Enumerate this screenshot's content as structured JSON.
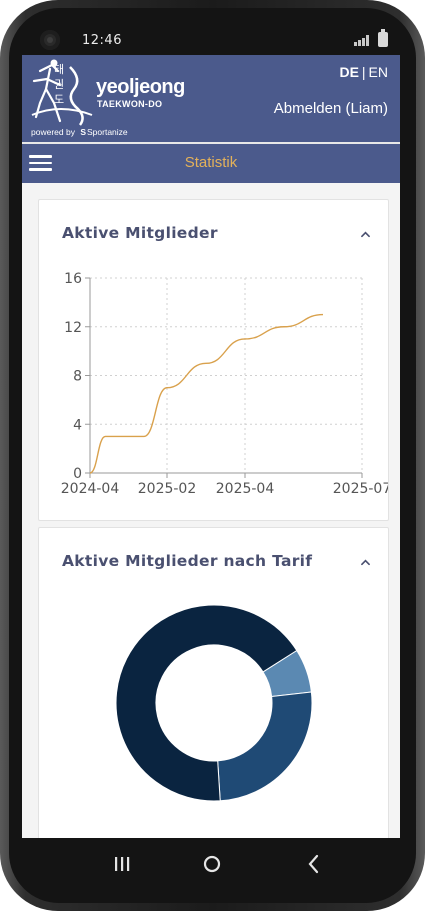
{
  "status_bar": {
    "time": "12:46"
  },
  "brand": {
    "hangul": [
      "태",
      "권",
      "도"
    ],
    "name": "yeoljeong",
    "subtitle": "TAEKWON-DO",
    "powered_by": "powered by",
    "powered_brand": "Sportanize"
  },
  "header": {
    "lang_active": "DE",
    "lang_sep": "|",
    "lang_other": "EN",
    "logout_label": "Abmelden (Liam)"
  },
  "navbar": {
    "title": "Statistik",
    "menu_icon": "hamburger-icon"
  },
  "cards": {
    "active_members": {
      "title": "Aktive Mitglieder",
      "toggle_icon": "chevron-up-icon"
    },
    "by_tariff": {
      "title": "Aktive Mitglieder nach Tarif",
      "toggle_icon": "chevron-up-icon"
    }
  },
  "colors": {
    "header_bg": "#4b5a8c",
    "accent_gold": "#e3b15a",
    "line": "#d9a14c",
    "donut": [
      "#0a2440",
      "#1f4a75",
      "#5b89b2"
    ]
  },
  "chart_data": [
    {
      "type": "line",
      "title": "Aktive Mitglieder",
      "x_tick_labels": [
        "2024-04",
        "2025-02",
        "2025-04",
        "2025-07"
      ],
      "y_ticks": [
        0,
        4,
        8,
        12,
        16
      ],
      "ylim": [
        0,
        16
      ],
      "grid": true,
      "points": [
        {
          "x": "2024-04",
          "y": 0
        },
        {
          "x": "2024-06",
          "y": 3
        },
        {
          "x": "2024-11",
          "y": 3
        },
        {
          "x": "2025-02",
          "y": 7
        },
        {
          "x": "2025-03",
          "y": 9
        },
        {
          "x": "2025-04",
          "y": 11
        },
        {
          "x": "2025-05",
          "y": 12
        },
        {
          "x": "2025-06",
          "y": 13
        }
      ]
    },
    {
      "type": "pie",
      "title": "Aktive Mitglieder nach Tarif",
      "donut": true,
      "slices": [
        {
          "value": 13
        },
        {
          "value": 5
        },
        {
          "value": 1.4
        }
      ]
    }
  ]
}
